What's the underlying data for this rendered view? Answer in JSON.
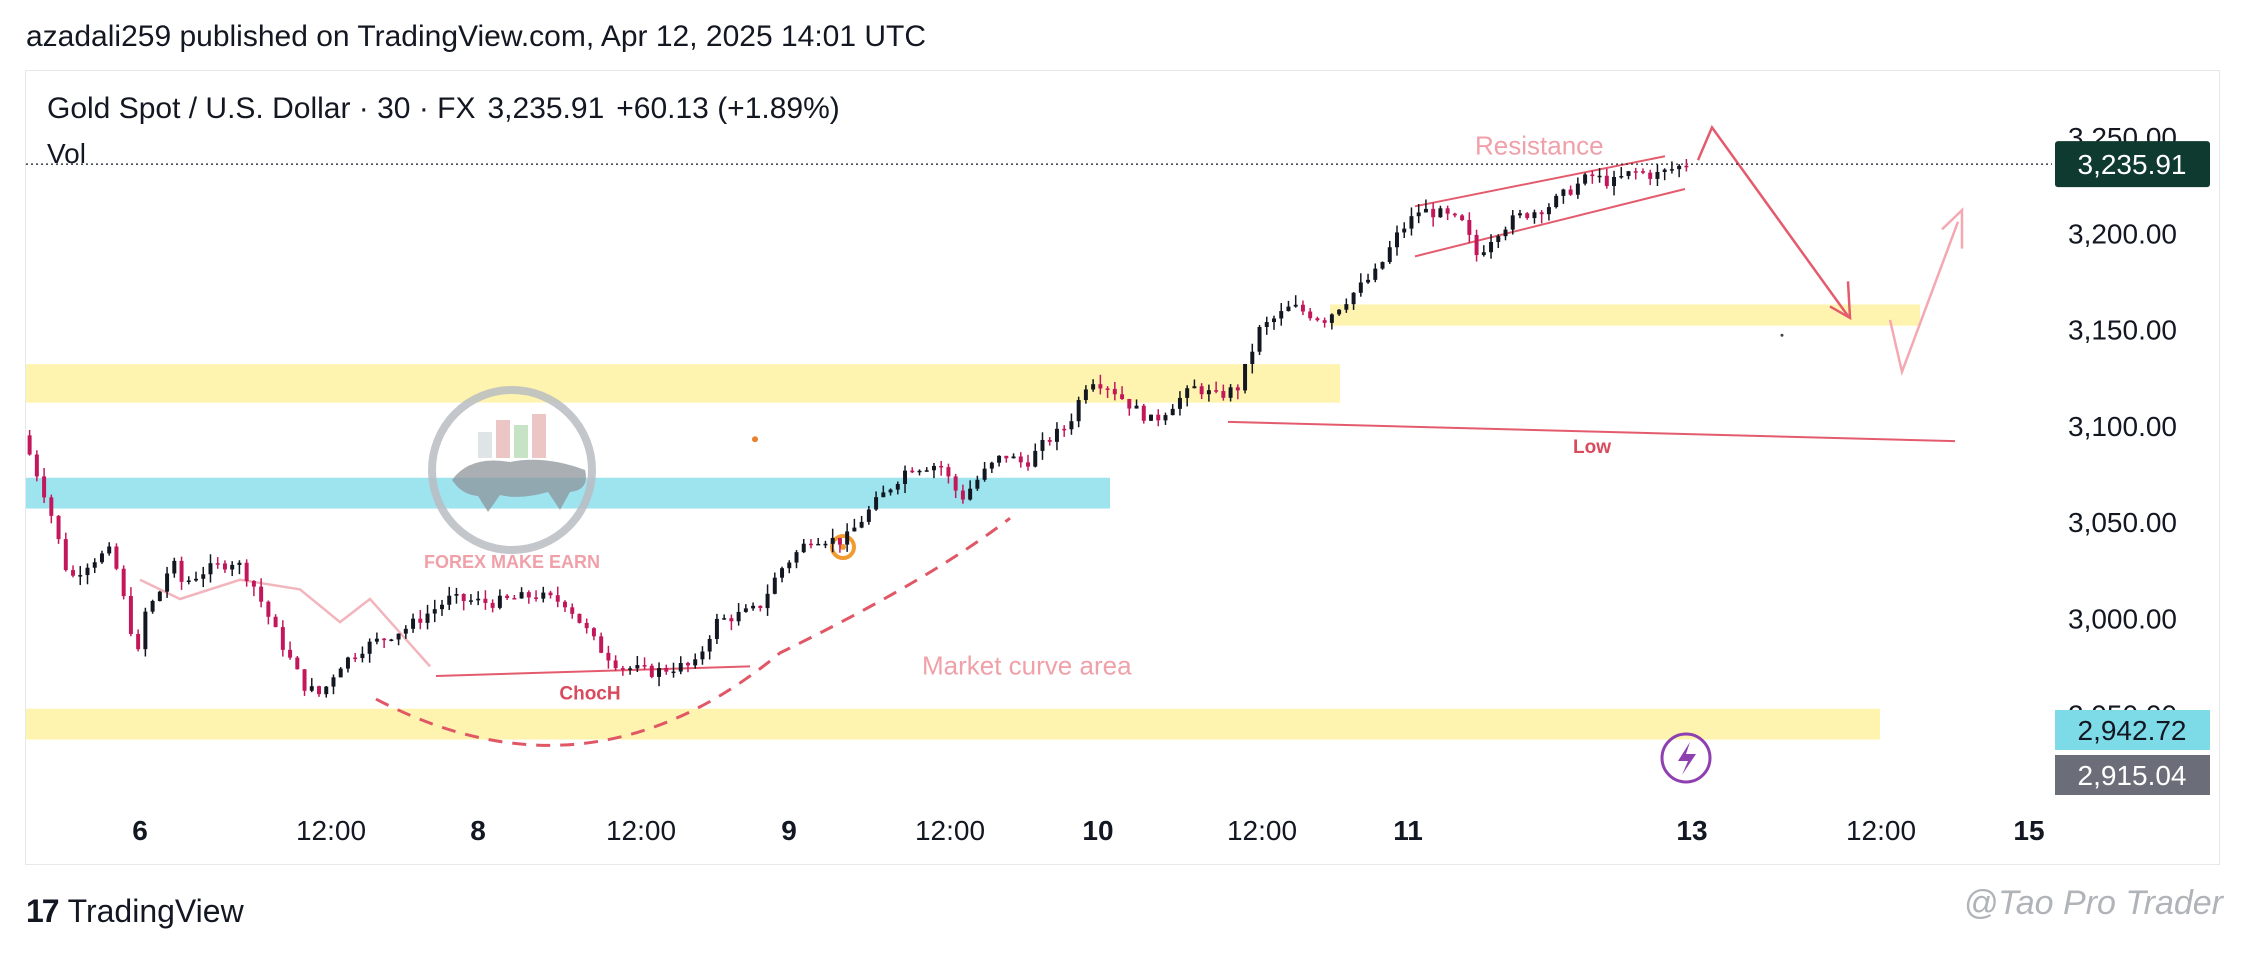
{
  "publisher": "azadali259 published on TradingView.com, Apr 12, 2025 14:01 UTC",
  "header": {
    "symbol": "Gold Spot / U.S. Dollar · 30 · FX",
    "price": "3,235.91",
    "change": "+60.13 (+1.89%)",
    "vol_label": "Vol"
  },
  "footer": {
    "brand_mark": "17",
    "brand_name": "TradingView",
    "watermark": "@Tao Pro Trader"
  },
  "colors": {
    "up": "#131722",
    "down": "#c2185b",
    "zone_yellow": "#fff3a6",
    "zone_cyan": "#7ddbe8",
    "annotation": "#e45b6e",
    "price_tag": "#0f3a2f",
    "tag_cyan": "#7ddbe8",
    "tag_gray": "#6b6e78"
  },
  "chart_data": {
    "type": "candlestick",
    "title": "Gold Spot / U.S. Dollar · 30 · FX",
    "x_ticks": [
      "6",
      "12:00",
      "8",
      "12:00",
      "9",
      "12:00",
      "10",
      "12:00",
      "11",
      "13",
      "12:00",
      "15"
    ],
    "x_ticks_bold": [
      "6",
      "8",
      "9",
      "10",
      "11",
      "13",
      "15"
    ],
    "y_ticks": [
      3250.0,
      3200.0,
      3150.0,
      3100.0,
      3050.0,
      3000.0,
      2950.0
    ],
    "y_tick_labels": [
      "3,250.00",
      "3,200.00",
      "3,150.00",
      "3,100.00",
      "3,050.00",
      "3,000.00",
      "2,950.00"
    ],
    "ylim": [
      2915,
      3265
    ],
    "last_price": 3235.91,
    "last_price_label": "3,235.91",
    "price_tags": [
      {
        "value": 2942.72,
        "label": "2,942.72",
        "color": "#7ddbe8",
        "text_color": "#131722"
      },
      {
        "value": 2915.04,
        "label": "2,915.04",
        "color": "#6b6e78",
        "text_color": "#ffffff"
      }
    ],
    "path_points": [
      [
        0.0,
        3095
      ],
      [
        1.2,
        3060
      ],
      [
        2.2,
        3020
      ],
      [
        3.2,
        3030
      ],
      [
        4.2,
        3035
      ],
      [
        5.4,
        2980
      ],
      [
        5.8,
        3005
      ],
      [
        6.3,
        3010
      ],
      [
        7.0,
        3030
      ],
      [
        7.5,
        3018
      ],
      [
        8.6,
        3025
      ],
      [
        10.0,
        3030
      ],
      [
        10.8,
        3018
      ],
      [
        12.0,
        2990
      ],
      [
        13.2,
        2965
      ],
      [
        14.0,
        2960
      ],
      [
        14.8,
        2975
      ],
      [
        16.0,
        2985
      ],
      [
        18.0,
        2995
      ],
      [
        20.0,
        3010
      ],
      [
        22.0,
        3008
      ],
      [
        24.0,
        3012
      ],
      [
        25.5,
        3008
      ],
      [
        27.0,
        2985
      ],
      [
        28.0,
        2975
      ],
      [
        29.5,
        2972
      ],
      [
        30.8,
        2975
      ],
      [
        31.5,
        2975
      ],
      [
        32.5,
        2998
      ],
      [
        34.5,
        3005
      ],
      [
        35.5,
        3025
      ],
      [
        37.0,
        3042
      ],
      [
        38.5,
        3040
      ],
      [
        40.0,
        3060
      ],
      [
        41.5,
        3078
      ],
      [
        43.0,
        3080
      ],
      [
        44.0,
        3062
      ],
      [
        45.0,
        3075
      ],
      [
        46.0,
        3085
      ],
      [
        47.0,
        3080
      ],
      [
        48.0,
        3092
      ],
      [
        49.0,
        3100
      ],
      [
        50.0,
        3125
      ],
      [
        51.0,
        3120
      ],
      [
        52.0,
        3110
      ],
      [
        53.0,
        3102
      ],
      [
        54.0,
        3112
      ],
      [
        55.0,
        3120
      ],
      [
        56.0,
        3115
      ],
      [
        57.0,
        3120
      ],
      [
        58.0,
        3150
      ],
      [
        59.5,
        3162
      ],
      [
        61.0,
        3155
      ],
      [
        62.0,
        3165
      ],
      [
        63.5,
        3180
      ],
      [
        64.5,
        3200
      ],
      [
        65.5,
        3212
      ],
      [
        66.5,
        3210
      ],
      [
        67.5,
        3205
      ],
      [
        68.2,
        3188
      ],
      [
        69.0,
        3200
      ],
      [
        70.0,
        3208
      ],
      [
        71.5,
        3214
      ],
      [
        72.5,
        3222
      ],
      [
        73.5,
        3230
      ],
      [
        74.5,
        3226
      ],
      [
        75.5,
        3232
      ],
      [
        76.5,
        3230
      ],
      [
        77.5,
        3234
      ],
      [
        78.0,
        3236
      ]
    ],
    "x_data_range": [
      0,
      78
    ],
    "tick_candle_index": {
      "6": 3.5,
      "12:00a": 9.5,
      "8": 14.3,
      "12:00b": 19.5,
      "9": 24.2,
      "12:00c": 29.5,
      "10": 34.0,
      "12:00d": 39.0,
      "11": 43.5,
      "13": 52.5,
      "12:00e": 58.0,
      "15": 63.0
    },
    "zones": [
      {
        "name": "resistance-zone-upper",
        "y_low": 3112,
        "y_high": 3132,
        "color": "yellow"
      },
      {
        "name": "support-zone-cyan",
        "y_low": 3057,
        "y_high": 3073,
        "color": "cyan"
      },
      {
        "name": "demand-zone-mid",
        "y_low": 3152,
        "y_high": 3163,
        "color": "yellow"
      },
      {
        "name": "demand-zone-bottom",
        "y_low": 2937,
        "y_high": 2953,
        "color": "yellow"
      }
    ],
    "annotations": [
      {
        "text": "Resistance"
      },
      {
        "text": "Low"
      },
      {
        "text": "ChocH"
      },
      {
        "text": "Market curve area"
      },
      {
        "text": "FOREX MAKE EARN"
      }
    ]
  }
}
